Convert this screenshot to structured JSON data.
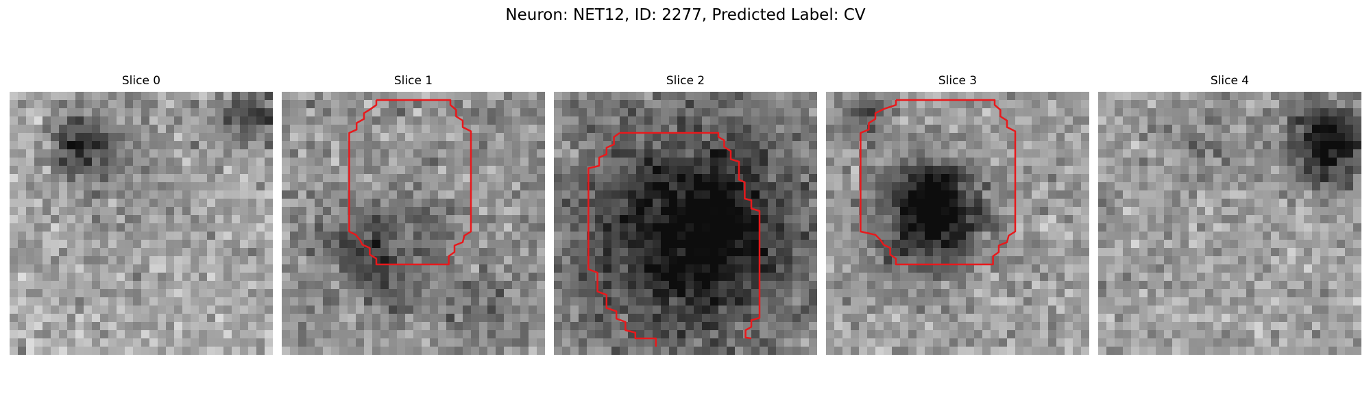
{
  "figure": {
    "title": "Neuron: NET12, ID: 2277, Predicted Label: CV"
  },
  "slices": [
    {
      "title": "Slice 0",
      "has_contour": false
    },
    {
      "title": "Slice 1",
      "has_contour": true
    },
    {
      "title": "Slice 2",
      "has_contour": true
    },
    {
      "title": "Slice 3",
      "has_contour": true
    },
    {
      "title": "Slice 4",
      "has_contour": false
    }
  ],
  "colors": {
    "contour": "#e8191c",
    "colormap": "gray"
  }
}
